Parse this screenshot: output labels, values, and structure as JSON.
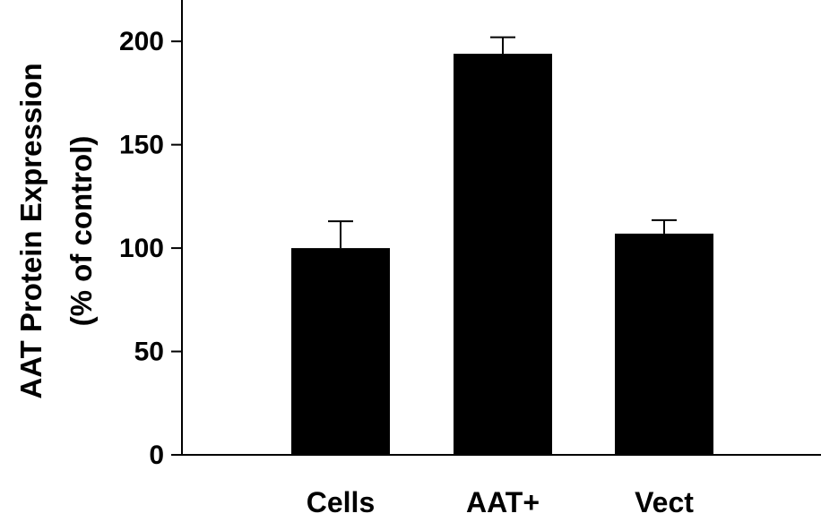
{
  "chart_data": {
    "type": "bar",
    "title": "",
    "xlabel": "",
    "ylabel_line1": "AAT Protein Expression",
    "ylabel_line2": "(% of control)",
    "categories": [
      "Cells",
      "AAT+",
      "Vect"
    ],
    "values": [
      100,
      194,
      107
    ],
    "errors": [
      13,
      8,
      6.5
    ],
    "ylim": [
      0,
      220
    ],
    "yticks": [
      0,
      50,
      100,
      150,
      200
    ],
    "grid": false,
    "bar_color": "#000000"
  }
}
